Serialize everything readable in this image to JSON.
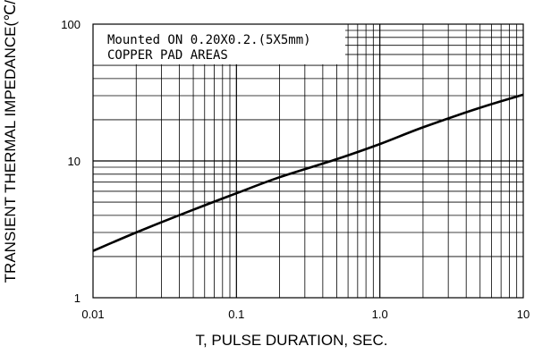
{
  "chart_data": {
    "type": "line",
    "x_scale": "log",
    "y_scale": "log",
    "xlim": [
      0.01,
      10
    ],
    "ylim": [
      1,
      100
    ],
    "x_ticks": [
      "0.01",
      "0.1",
      "1.0",
      "10"
    ],
    "y_ticks": [
      "1",
      "10",
      "100"
    ],
    "xlabel": "T, PULSE DURATION, SEC.",
    "ylabel": "TRANSIENT THERMAL IMPEDANCE(℃/",
    "annotation": [
      "Mounted ON 0.20X0.2.(5X5mm)",
      "COPPER PAD AREAS"
    ],
    "grid": true,
    "series": [
      {
        "x": [
          0.01,
          0.02,
          0.05,
          0.1,
          0.2,
          0.5,
          1.0,
          2.0,
          5.0,
          10
        ],
        "y": [
          2.2,
          3.0,
          4.4,
          5.8,
          7.6,
          10.3,
          13.3,
          17.6,
          24.5,
          30.5
        ]
      }
    ]
  }
}
